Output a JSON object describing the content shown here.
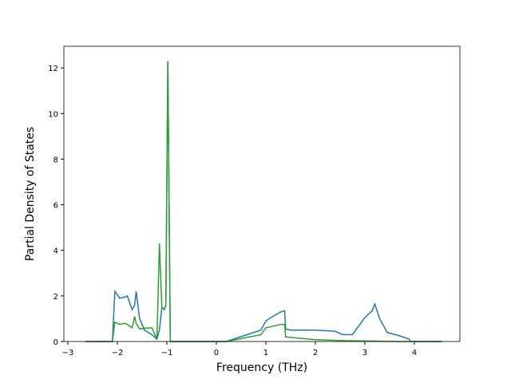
{
  "chart_data": {
    "type": "line",
    "xlabel": "Frequency (THz)",
    "ylabel": "Partial Density of States",
    "x": [
      -2.65,
      -2.1,
      -2.05,
      -1.95,
      -1.85,
      -1.8,
      -1.7,
      -1.65,
      -1.62,
      -1.55,
      -1.45,
      -1.3,
      -1.2,
      -1.15,
      -1.1,
      -1.05,
      -1.02,
      -0.98,
      -0.93,
      0.2,
      0.9,
      1.0,
      1.1,
      1.3,
      1.38,
      1.4,
      1.5,
      2.0,
      2.4,
      2.55,
      2.75,
      2.85,
      3.0,
      3.15,
      3.2,
      3.3,
      3.45,
      3.7,
      3.9,
      3.92,
      4.55
    ],
    "series": [
      {
        "color": "#1f77b4",
        "values": [
          0,
          0,
          2.2,
          1.9,
          1.95,
          2.0,
          1.4,
          1.6,
          2.2,
          1.0,
          0.5,
          0.3,
          0.1,
          0.5,
          1.5,
          1.4,
          1.6,
          12.3,
          0,
          0,
          0.5,
          0.9,
          1.05,
          1.3,
          1.35,
          0.55,
          0.5,
          0.5,
          0.45,
          0.3,
          0.3,
          0.6,
          1.05,
          1.35,
          1.65,
          1.0,
          0.4,
          0.25,
          0.1,
          0,
          0
        ]
      },
      {
        "color": "#2ca02c",
        "values": [
          0,
          0,
          0.85,
          0.75,
          0.8,
          0.75,
          0.6,
          1.1,
          0.8,
          0.55,
          0.58,
          0.6,
          0.1,
          4.3,
          1.5,
          1.4,
          1.6,
          12.3,
          0,
          0,
          0.3,
          0.6,
          0.65,
          0.75,
          0.75,
          0.2,
          0.18,
          0.08,
          0.05,
          0.04,
          0.03,
          0.03,
          0.02,
          0.02,
          0.02,
          0.01,
          0.01,
          0,
          0,
          0,
          0
        ]
      }
    ],
    "xlim": [
      -3.08,
      4.92
    ],
    "ylim": [
      0,
      12.95
    ],
    "xticks": [
      {
        "value": -3,
        "label": "−3"
      },
      {
        "value": -2,
        "label": "−2"
      },
      {
        "value": -1,
        "label": "−1"
      },
      0,
      1,
      2,
      3,
      4
    ],
    "yticks": [
      0,
      2,
      4,
      6,
      8,
      10,
      12
    ],
    "grid": false
  }
}
